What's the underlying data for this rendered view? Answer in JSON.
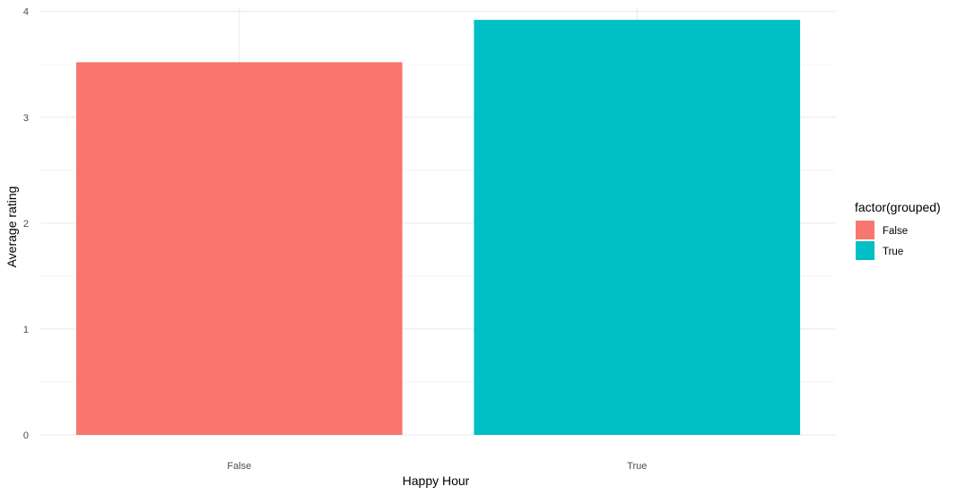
{
  "chart_data": {
    "type": "bar",
    "categories": [
      "False",
      "True"
    ],
    "values": [
      3.52,
      3.92
    ],
    "colors": [
      "#F8766D",
      "#00BFC4"
    ],
    "xlabel": "Happy Hour",
    "ylabel": "Average rating",
    "ylim": [
      0,
      4.04
    ],
    "yticks": [
      "0",
      "1",
      "2",
      "3",
      "4"
    ],
    "grid": true,
    "legend": {
      "title": "factor(grouped)",
      "position": "right",
      "entries": [
        {
          "label": "False",
          "color": "#F8766D"
        },
        {
          "label": "True",
          "color": "#00BFC4"
        }
      ]
    }
  }
}
